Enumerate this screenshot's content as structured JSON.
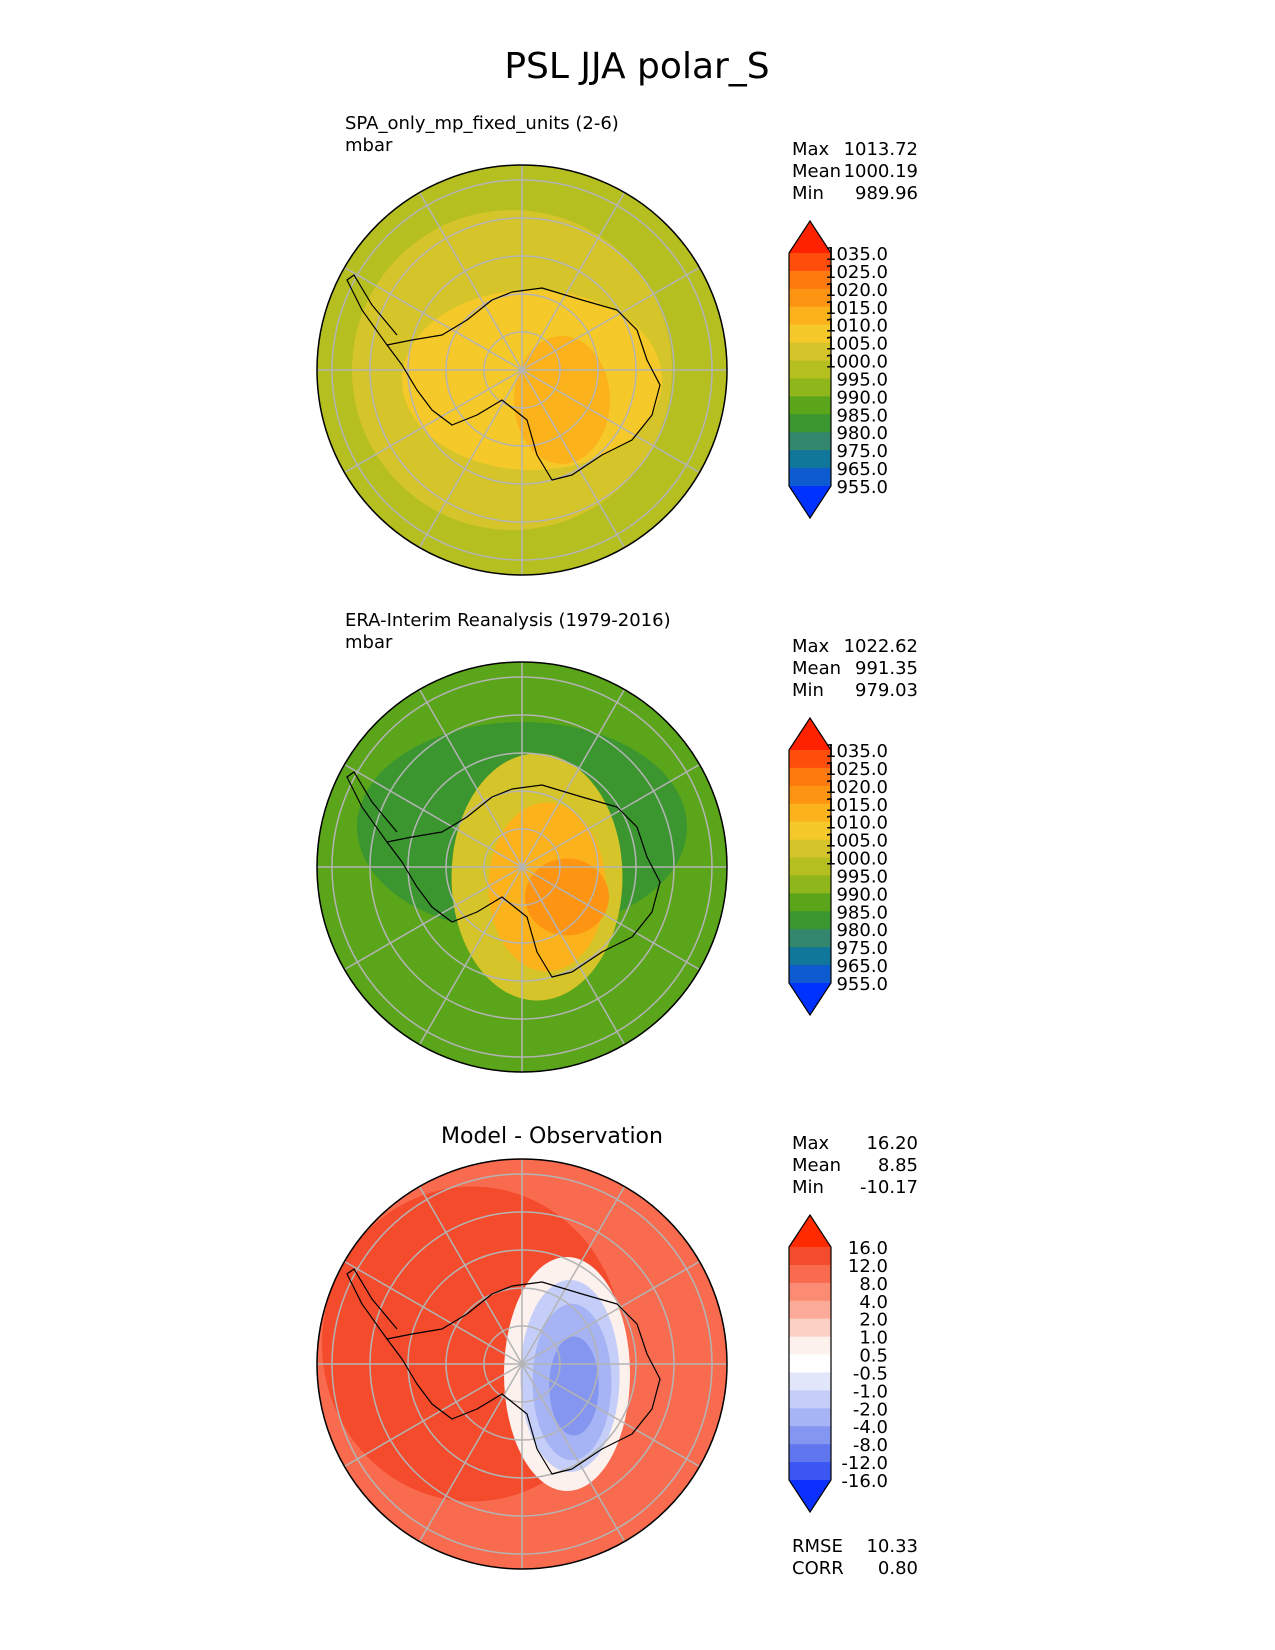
{
  "figure_title": "PSL JJA polar_S",
  "chart_data": [
    {
      "type": "heatmap",
      "projection": "south-polar-stereographic",
      "title": "SPA_only_mp_fixed_units (2-6)",
      "units": "mbar",
      "stats": [
        {
          "label": "Max",
          "value": "1013.72"
        },
        {
          "label": "Mean",
          "value": "1000.19"
        },
        {
          "label": "Min",
          "value": "989.96"
        }
      ],
      "colorbar": {
        "tick_labels": [
          "1035.0",
          "1025.0",
          "1020.0",
          "1015.0",
          "1010.0",
          "1005.0",
          "1000.0",
          "995.0",
          "990.0",
          "985.0",
          "980.0",
          "975.0",
          "965.0",
          "955.0"
        ],
        "colors": [
          "#ff2200",
          "#ff4e0c",
          "#ff7a0e",
          "#fd9512",
          "#fcb31b",
          "#f5c929",
          "#d6c52a",
          "#b5bf20",
          "#8fb61a",
          "#5aa51a",
          "#3b9630",
          "#33876c",
          "#10769a",
          "#0e5bd1",
          "#0032ff"
        ],
        "extend": "both"
      },
      "field_contours": [
        {
          "level": "995.0",
          "color": "#b5bf20"
        },
        {
          "level": "1000.0",
          "color": "#d6c52a"
        },
        {
          "level": "1005.0",
          "color": "#f5c929"
        },
        {
          "level": "1010.0",
          "color": "#fcb31b"
        }
      ]
    },
    {
      "type": "heatmap",
      "projection": "south-polar-stereographic",
      "title": "ERA-Interim Reanalysis (1979-2016)",
      "units": "mbar",
      "stats": [
        {
          "label": "Max",
          "value": "1022.62"
        },
        {
          "label": "Mean",
          "value": "991.35"
        },
        {
          "label": "Min",
          "value": "979.03"
        }
      ],
      "colorbar": {
        "tick_labels": [
          "1035.0",
          "1025.0",
          "1020.0",
          "1015.0",
          "1010.0",
          "1005.0",
          "1000.0",
          "995.0",
          "990.0",
          "985.0",
          "980.0",
          "975.0",
          "965.0",
          "955.0"
        ],
        "colors": [
          "#ff2200",
          "#ff4e0c",
          "#ff7a0e",
          "#fd9512",
          "#fcb31b",
          "#f5c929",
          "#d6c52a",
          "#b5bf20",
          "#8fb61a",
          "#5aa51a",
          "#3b9630",
          "#33876c",
          "#10769a",
          "#0e5bd1",
          "#0032ff"
        ],
        "extend": "both"
      },
      "field_contours": [
        {
          "level": "990.0",
          "color": "#5aa51a"
        },
        {
          "level": "985.0",
          "color": "#3b9630"
        },
        {
          "level": "1000.0",
          "color": "#d6c52a"
        },
        {
          "level": "1010.0",
          "color": "#fcb31b"
        },
        {
          "level": "1015.0",
          "color": "#fd9512"
        }
      ]
    },
    {
      "type": "heatmap",
      "projection": "south-polar-stereographic",
      "title": "Model - Observation",
      "units": "",
      "stats": [
        {
          "label": "Max",
          "value": "16.20"
        },
        {
          "label": "Mean",
          "value": "8.85"
        },
        {
          "label": "Min",
          "value": "-10.17"
        }
      ],
      "colorbar": {
        "tick_labels": [
          "16.0",
          "12.0",
          "8.0",
          "4.0",
          "2.0",
          "1.0",
          "0.5",
          "-0.5",
          "-1.0",
          "-2.0",
          "-4.0",
          "-8.0",
          "-12.0",
          "-16.0"
        ],
        "colors": [
          "#ff2a00",
          "#f44b2c",
          "#f86b4f",
          "#fb8b72",
          "#fcab98",
          "#fdd0c6",
          "#fdf1ee",
          "#ffffff",
          "#e2e6fb",
          "#c5cef8",
          "#a6b3f4",
          "#8596f0",
          "#5f76ee",
          "#3b56f3",
          "#0b30ff"
        ],
        "extend": "both"
      },
      "field_contours": [
        {
          "level": "8.0",
          "color": "#f86b4f"
        },
        {
          "level": "12.0",
          "color": "#f44b2c"
        },
        {
          "level": "0.5",
          "color": "#fdf1ee"
        },
        {
          "level": "-2.0",
          "color": "#c5cef8"
        },
        {
          "level": "-4.0",
          "color": "#a6b3f4"
        },
        {
          "level": "-8.0",
          "color": "#8596f0"
        }
      ],
      "metrics": [
        {
          "label": "RMSE",
          "value": "10.33"
        },
        {
          "label": "CORR",
          "value": "0.80"
        }
      ]
    }
  ]
}
